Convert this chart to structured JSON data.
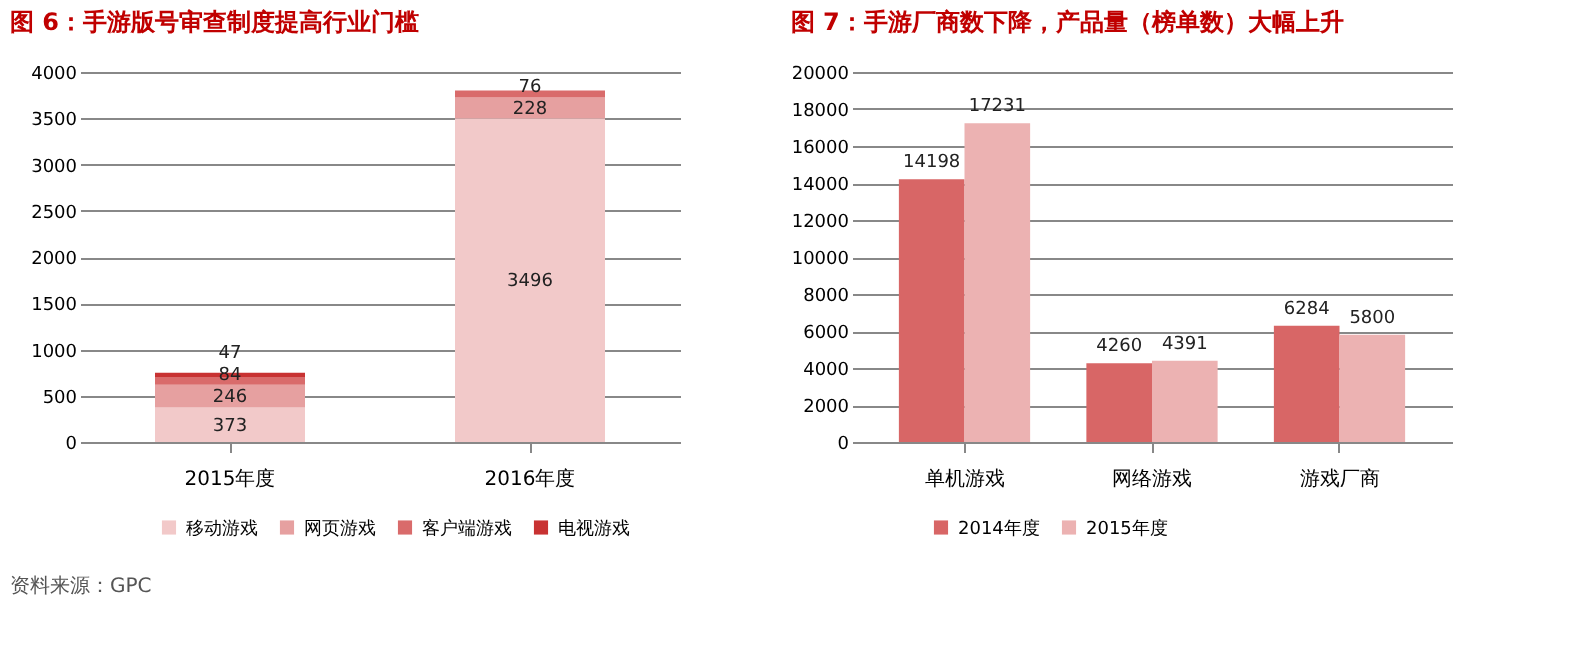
{
  "chart_data": [
    {
      "type": "bar",
      "title": "图 6：手游版号审查制度提高行业门槛",
      "categories": [
        "2015年度",
        "2016年度"
      ],
      "stacked": true,
      "series": [
        {
          "name": "移动游戏",
          "color": "#f2c9c9",
          "values": [
            373,
            3496
          ]
        },
        {
          "name": "网页游戏",
          "color": "#e6a0a0",
          "values": [
            246,
            228
          ]
        },
        {
          "name": "客户端游戏",
          "color": "#d96b6b",
          "values": [
            84,
            76
          ]
        },
        {
          "name": "电视游戏",
          "color": "#c83232",
          "values": [
            47,
            null
          ]
        }
      ],
      "ylim": [
        0,
        4000
      ],
      "yticks": [
        0,
        500,
        1000,
        1500,
        2000,
        2500,
        3000,
        3500,
        4000
      ],
      "grid": "y",
      "legend": "bottom",
      "data_labels": true,
      "annotations": [
        "资料来源：GPC"
      ]
    },
    {
      "type": "bar",
      "title": "图 7：手游厂商数下降，产品量（榜单数）大幅上升",
      "categories": [
        "单机游戏",
        "网络游戏",
        "游戏厂商"
      ],
      "series": [
        {
          "name": "2014年度",
          "color": "#d86666",
          "values": [
            14198,
            4260,
            6284
          ]
        },
        {
          "name": "2015年度",
          "color": "#ecb2b2",
          "values": [
            17231,
            4391,
            5800
          ]
        }
      ],
      "ylim": [
        0,
        20000
      ],
      "yticks": [
        0,
        2000,
        4000,
        6000,
        8000,
        10000,
        12000,
        14000,
        16000,
        18000,
        20000
      ],
      "grid": "y",
      "legend": "bottom",
      "data_labels": true
    }
  ]
}
